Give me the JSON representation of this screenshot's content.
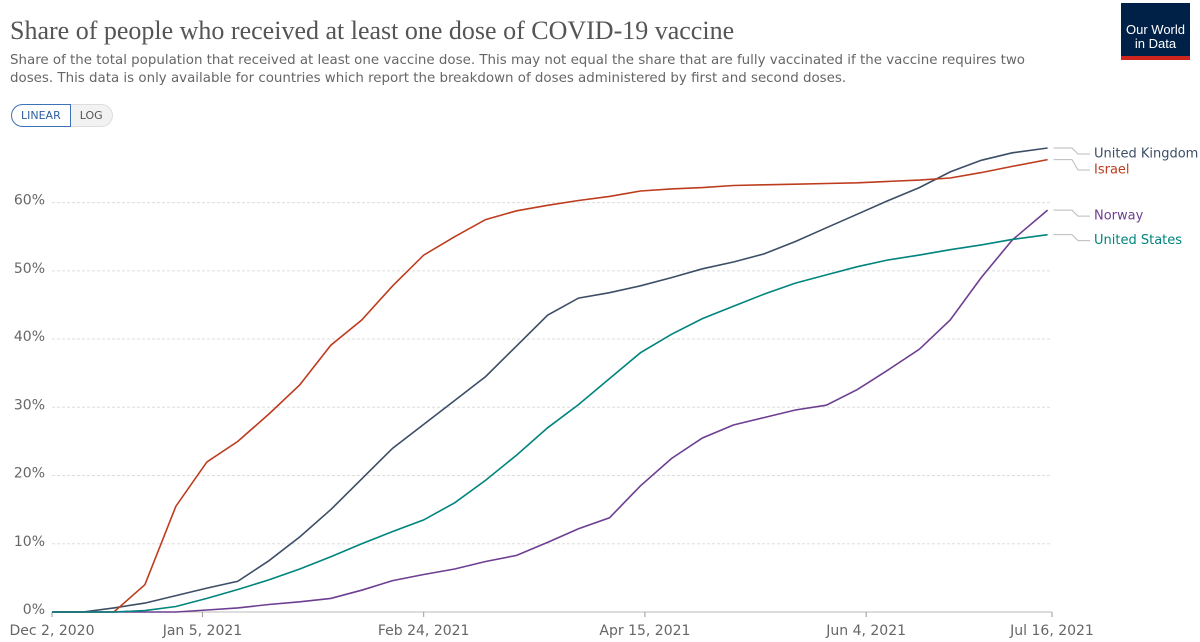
{
  "header": {
    "title": "Share of people who received at least one dose of COVID-19 vaccine",
    "subtitle": "Share of the total population that received at least one vaccine dose. This may not equal the share that are fully vaccinated if the vaccine requires two doses. This data is only available for countries which report the breakdown of doses administered by first and second doses.",
    "controls": [
      "LINEAR",
      "LOG"
    ],
    "logo": [
      "Our World",
      "in Data"
    ]
  },
  "chart_data": {
    "type": "line",
    "log_scale": false,
    "grid": true,
    "x": [
      "2020-12-02",
      "2020-12-09",
      "2020-12-16",
      "2020-12-23",
      "2020-12-30",
      "2021-01-06",
      "2021-01-13",
      "2021-01-20",
      "2021-01-27",
      "2021-02-03",
      "2021-02-10",
      "2021-02-17",
      "2021-02-24",
      "2021-03-03",
      "2021-03-10",
      "2021-03-17",
      "2021-03-24",
      "2021-03-31",
      "2021-04-07",
      "2021-04-14",
      "2021-04-21",
      "2021-04-28",
      "2021-05-05",
      "2021-05-12",
      "2021-05-19",
      "2021-05-26",
      "2021-06-02",
      "2021-06-09",
      "2021-06-16",
      "2021-06-23",
      "2021-06-30",
      "2021-07-07",
      "2021-07-15"
    ],
    "xlim": [
      "2020-12-02",
      "2021-07-16"
    ],
    "xticks": [
      {
        "value": "2020-12-02",
        "label": "Dec 2, 2020"
      },
      {
        "value": "2021-01-05",
        "label": "Jan 5, 2021"
      },
      {
        "value": "2021-02-24",
        "label": "Feb 24, 2021"
      },
      {
        "value": "2021-04-15",
        "label": "Apr 15, 2021"
      },
      {
        "value": "2021-06-04",
        "label": "Jun 4, 2021"
      },
      {
        "value": "2021-07-16",
        "label": "Jul 16, 2021"
      }
    ],
    "ylim": [
      0,
      68
    ],
    "yticks": [
      {
        "value": 0,
        "label": "0%"
      },
      {
        "value": 10,
        "label": "10%"
      },
      {
        "value": 20,
        "label": "20%"
      },
      {
        "value": 30,
        "label": "30%"
      },
      {
        "value": 40,
        "label": "40%"
      },
      {
        "value": 50,
        "label": "50%"
      },
      {
        "value": 60,
        "label": "60%"
      }
    ],
    "series": [
      {
        "name": "United Kingdom",
        "color": "#3c4e66",
        "values": [
          0,
          0,
          0.6,
          1.3,
          2.4,
          3.5,
          4.5,
          7.5,
          11,
          15,
          19.5,
          24,
          27.5,
          31,
          34.5,
          39,
          43.5,
          46,
          46.8,
          47.8,
          49,
          50.3,
          51.3,
          52.5,
          54.3,
          56.3,
          58.3,
          60.3,
          62.2,
          64.5,
          66.2,
          67.3,
          68.0
        ]
      },
      {
        "name": "Israel",
        "color": "#be3c1e",
        "values": [
          0,
          0,
          0,
          4,
          15.5,
          22,
          25,
          29,
          33.3,
          39.1,
          42.8,
          47.8,
          52.3,
          55,
          57.5,
          58.8,
          59.6,
          60.3,
          60.9,
          61.7,
          62,
          62.2,
          62.5,
          62.6,
          62.7,
          62.8,
          62.9,
          63.1,
          63.3,
          63.6,
          64.4,
          65.3,
          66.3
        ]
      },
      {
        "name": "Norway",
        "color": "#6d3e91",
        "values": [
          0,
          0,
          0,
          0,
          0,
          0.3,
          0.6,
          1.1,
          1.5,
          2.0,
          3.2,
          4.6,
          5.5,
          6.3,
          7.4,
          8.3,
          10.2,
          12.2,
          13.8,
          18.5,
          22.5,
          25.5,
          27.4,
          28.5,
          29.6,
          30.3,
          32.6,
          35.5,
          38.5,
          42.8,
          49,
          54.5,
          58.9
        ]
      },
      {
        "name": "United States",
        "color": "#00847e",
        "values": [
          0,
          0,
          0,
          0.2,
          0.8,
          2,
          3.3,
          4.7,
          6.3,
          8.1,
          10,
          11.8,
          13.5,
          16,
          19.3,
          23,
          27,
          30.4,
          34.2,
          38,
          40.7,
          43,
          44.8,
          46.6,
          48.2,
          49.4,
          50.6,
          51.6,
          52.3,
          53.1,
          53.8,
          54.6,
          55.3
        ]
      }
    ]
  }
}
